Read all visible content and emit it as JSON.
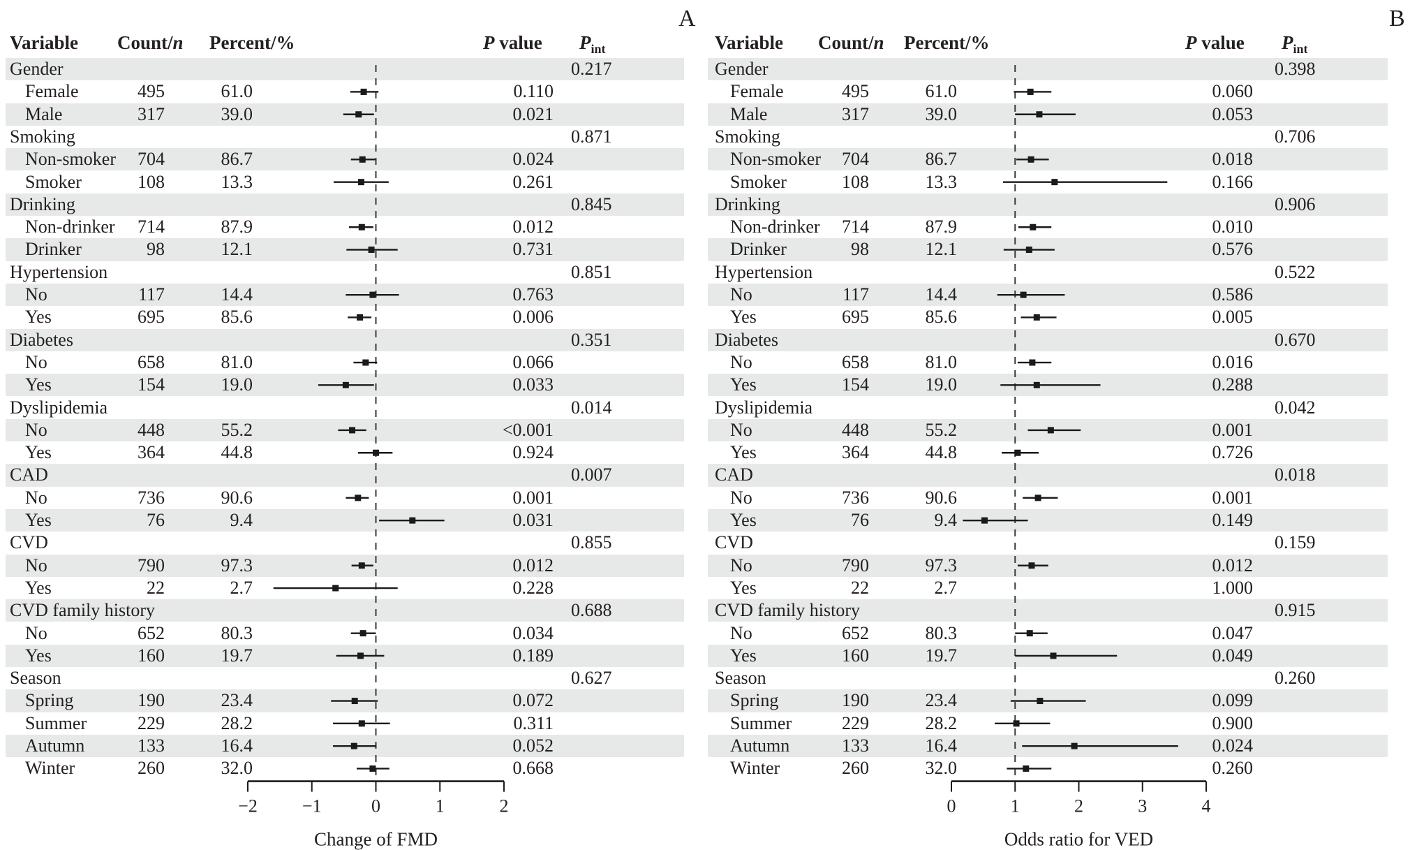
{
  "figure": {
    "panel_labels": [
      "A",
      "B"
    ],
    "headers": {
      "variable": "Variable",
      "count_prefix": "Count/",
      "count_italic": "n",
      "percent": "Percent/%",
      "pvalue_italic": "P",
      "pvalue_rest": " value",
      "pint_italic": "P",
      "pint_sub": "int"
    }
  },
  "chart_data": [
    {
      "type": "forest",
      "panel": "A",
      "xlabel": "Change of FMD",
      "xlim": [
        -2,
        2
      ],
      "xticks": [
        "−2",
        "−1",
        "0",
        "1",
        "2"
      ],
      "xtick_values": [
        -2,
        -1,
        0,
        1,
        2
      ],
      "reference_line": 0,
      "rows": [
        {
          "label": "Gender",
          "group": true,
          "p_int": "0.217"
        },
        {
          "label": "Female",
          "count": "495",
          "percent": "61.0",
          "p": "0.110",
          "est": -0.19,
          "lo": -0.4,
          "hi": 0.04
        },
        {
          "label": "Male",
          "count": "317",
          "percent": "39.0",
          "p": "0.021",
          "est": -0.27,
          "lo": -0.51,
          "hi": -0.03
        },
        {
          "label": "Smoking",
          "group": true,
          "p_int": "0.871"
        },
        {
          "label": "Non-smoker",
          "count": "704",
          "percent": "86.7",
          "p": "0.024",
          "est": -0.21,
          "lo": -0.39,
          "hi": -0.01
        },
        {
          "label": "Smoker",
          "count": "108",
          "percent": "13.3",
          "p": "0.261",
          "est": -0.23,
          "lo": -0.66,
          "hi": 0.2
        },
        {
          "label": "Drinking",
          "group": true,
          "p_int": "0.845"
        },
        {
          "label": "Non-drinker",
          "count": "714",
          "percent": "87.9",
          "p": "0.012",
          "est": -0.22,
          "lo": -0.42,
          "hi": -0.04
        },
        {
          "label": "Drinker",
          "count": "98",
          "percent": "12.1",
          "p": "0.731",
          "est": -0.07,
          "lo": -0.46,
          "hi": 0.34
        },
        {
          "label": "Hypertension",
          "group": true,
          "p_int": "0.851"
        },
        {
          "label": "No",
          "count": "117",
          "percent": "14.4",
          "p": "0.763",
          "est": -0.05,
          "lo": -0.47,
          "hi": 0.36
        },
        {
          "label": "Yes",
          "count": "695",
          "percent": "85.6",
          "p": "0.006",
          "est": -0.25,
          "lo": -0.44,
          "hi": -0.07
        },
        {
          "label": "Diabetes",
          "group": true,
          "p_int": "0.351"
        },
        {
          "label": "No",
          "count": "658",
          "percent": "81.0",
          "p": "0.066",
          "est": -0.16,
          "lo": -0.35,
          "hi": 0.02
        },
        {
          "label": "Yes",
          "count": "154",
          "percent": "19.0",
          "p": "0.033",
          "est": -0.47,
          "lo": -0.9,
          "hi": -0.03
        },
        {
          "label": "Dyslipidemia",
          "group": true,
          "p_int": "0.014"
        },
        {
          "label": "No",
          "count": "448",
          "percent": "55.2",
          "p": "<0.001",
          "est": -0.37,
          "lo": -0.59,
          "hi": -0.15
        },
        {
          "label": "Yes",
          "count": "364",
          "percent": "44.8",
          "p": "0.924",
          "est": 0.0,
          "lo": -0.28,
          "hi": 0.26
        },
        {
          "label": "CAD",
          "group": true,
          "p_int": "0.007"
        },
        {
          "label": "No",
          "count": "736",
          "percent": "90.6",
          "p": "0.001",
          "est": -0.28,
          "lo": -0.47,
          "hi": -0.11
        },
        {
          "label": "Yes",
          "count": "76",
          "percent": "9.4",
          "p": "0.031",
          "est": 0.57,
          "lo": 0.05,
          "hi": 1.07
        },
        {
          "label": "CVD",
          "group": true,
          "p_int": "0.855"
        },
        {
          "label": "No",
          "count": "790",
          "percent": "97.3",
          "p": "0.012",
          "est": -0.22,
          "lo": -0.38,
          "hi": -0.04
        },
        {
          "label": "Yes",
          "count": "22",
          "percent": "2.7",
          "p": "0.228",
          "est": -0.63,
          "lo": -1.6,
          "hi": 0.34
        },
        {
          "label": "CVD family history",
          "group": true,
          "p_int": "0.688"
        },
        {
          "label": "No",
          "count": "652",
          "percent": "80.3",
          "p": "0.034",
          "est": -0.2,
          "lo": -0.39,
          "hi": 0.0
        },
        {
          "label": "Yes",
          "count": "160",
          "percent": "19.7",
          "p": "0.189",
          "est": -0.24,
          "lo": -0.62,
          "hi": 0.13
        },
        {
          "label": "Season",
          "group": true,
          "p_int": "0.627"
        },
        {
          "label": "Spring",
          "count": "190",
          "percent": "23.4",
          "p": "0.072",
          "est": -0.33,
          "lo": -0.7,
          "hi": 0.03
        },
        {
          "label": "Summer",
          "count": "229",
          "percent": "28.2",
          "p": "0.311",
          "est": -0.22,
          "lo": -0.67,
          "hi": 0.22
        },
        {
          "label": "Autumn",
          "count": "133",
          "percent": "16.4",
          "p": "0.052",
          "est": -0.34,
          "lo": -0.67,
          "hi": 0.01
        },
        {
          "label": "Winter",
          "count": "260",
          "percent": "32.0",
          "p": "0.668",
          "est": -0.05,
          "lo": -0.3,
          "hi": 0.21
        }
      ]
    },
    {
      "type": "forest",
      "panel": "B",
      "xlabel": "Odds ratio for VED",
      "xlim": [
        0,
        4
      ],
      "xticks": [
        "0",
        "1",
        "2",
        "3",
        "4"
      ],
      "xtick_values": [
        0,
        1,
        2,
        3,
        4
      ],
      "reference_line": 1,
      "rows": [
        {
          "label": "Gender",
          "group": true,
          "p_int": "0.398"
        },
        {
          "label": "Female",
          "count": "495",
          "percent": "61.0",
          "p": "0.060",
          "est": 1.24,
          "lo": 0.98,
          "hi": 1.57
        },
        {
          "label": "Male",
          "count": "317",
          "percent": "39.0",
          "p": "0.053",
          "est": 1.38,
          "lo": 1.0,
          "hi": 1.95
        },
        {
          "label": "Smoking",
          "group": true,
          "p_int": "0.706"
        },
        {
          "label": "Non-smoker",
          "count": "704",
          "percent": "86.7",
          "p": "0.018",
          "est": 1.25,
          "lo": 1.02,
          "hi": 1.53
        },
        {
          "label": "Smoker",
          "count": "108",
          "percent": "13.3",
          "p": "0.166",
          "est": 1.62,
          "lo": 0.81,
          "hi": 3.39
        },
        {
          "label": "Drinking",
          "group": true,
          "p_int": "0.906"
        },
        {
          "label": "Non-drinker",
          "count": "714",
          "percent": "87.9",
          "p": "0.010",
          "est": 1.28,
          "lo": 1.05,
          "hi": 1.57
        },
        {
          "label": "Drinker",
          "count": "98",
          "percent": "12.1",
          "p": "0.576",
          "est": 1.22,
          "lo": 0.82,
          "hi": 1.62
        },
        {
          "label": "Hypertension",
          "group": true,
          "p_int": "0.522"
        },
        {
          "label": "No",
          "count": "117",
          "percent": "14.4",
          "p": "0.586",
          "est": 1.13,
          "lo": 0.72,
          "hi": 1.78
        },
        {
          "label": "Yes",
          "count": "695",
          "percent": "85.6",
          "p": "0.005",
          "est": 1.34,
          "lo": 1.09,
          "hi": 1.65
        },
        {
          "label": "Diabetes",
          "group": true,
          "p_int": "0.670"
        },
        {
          "label": "No",
          "count": "658",
          "percent": "81.0",
          "p": "0.016",
          "est": 1.27,
          "lo": 1.04,
          "hi": 1.57
        },
        {
          "label": "Yes",
          "count": "154",
          "percent": "19.0",
          "p": "0.288",
          "est": 1.34,
          "lo": 0.77,
          "hi": 2.34
        },
        {
          "label": "Dyslipidemia",
          "group": true,
          "p_int": "0.042"
        },
        {
          "label": "No",
          "count": "448",
          "percent": "55.2",
          "p": "0.001",
          "est": 1.56,
          "lo": 1.2,
          "hi": 2.03
        },
        {
          "label": "Yes",
          "count": "364",
          "percent": "44.8",
          "p": "0.726",
          "est": 1.04,
          "lo": 0.79,
          "hi": 1.37
        },
        {
          "label": "CAD",
          "group": true,
          "p_int": "0.018"
        },
        {
          "label": "No",
          "count": "736",
          "percent": "90.6",
          "p": "0.001",
          "est": 1.36,
          "lo": 1.12,
          "hi": 1.67
        },
        {
          "label": "Yes",
          "count": "76",
          "percent": "9.4",
          "p": "0.149",
          "est": 0.52,
          "lo": 0.18,
          "hi": 1.2
        },
        {
          "label": "CVD",
          "group": true,
          "p_int": "0.159"
        },
        {
          "label": "No",
          "count": "790",
          "percent": "97.3",
          "p": "0.012",
          "est": 1.26,
          "lo": 1.04,
          "hi": 1.52
        },
        {
          "label": "Yes",
          "count": "22",
          "percent": "2.7",
          "p": "1.000",
          "est": null,
          "lo": null,
          "hi": null
        },
        {
          "label": "CVD family history",
          "group": true,
          "p_int": "0.915"
        },
        {
          "label": "No",
          "count": "652",
          "percent": "80.3",
          "p": "0.047",
          "est": 1.23,
          "lo": 1.0,
          "hi": 1.51
        },
        {
          "label": "Yes",
          "count": "160",
          "percent": "19.7",
          "p": "0.049",
          "est": 1.6,
          "lo": 1.0,
          "hi": 2.6
        },
        {
          "label": "Season",
          "group": true,
          "p_int": "0.260"
        },
        {
          "label": "Spring",
          "count": "190",
          "percent": "23.4",
          "p": "0.099",
          "est": 1.39,
          "lo": 0.93,
          "hi": 2.11
        },
        {
          "label": "Summer",
          "count": "229",
          "percent": "28.2",
          "p": "0.900",
          "est": 1.02,
          "lo": 0.68,
          "hi": 1.55
        },
        {
          "label": "Autumn",
          "count": "133",
          "percent": "16.4",
          "p": "0.024",
          "est": 1.93,
          "lo": 1.11,
          "hi": 3.56
        },
        {
          "label": "Winter",
          "count": "260",
          "percent": "32.0",
          "p": "0.260",
          "est": 1.17,
          "lo": 0.87,
          "hi": 1.57
        }
      ]
    }
  ]
}
